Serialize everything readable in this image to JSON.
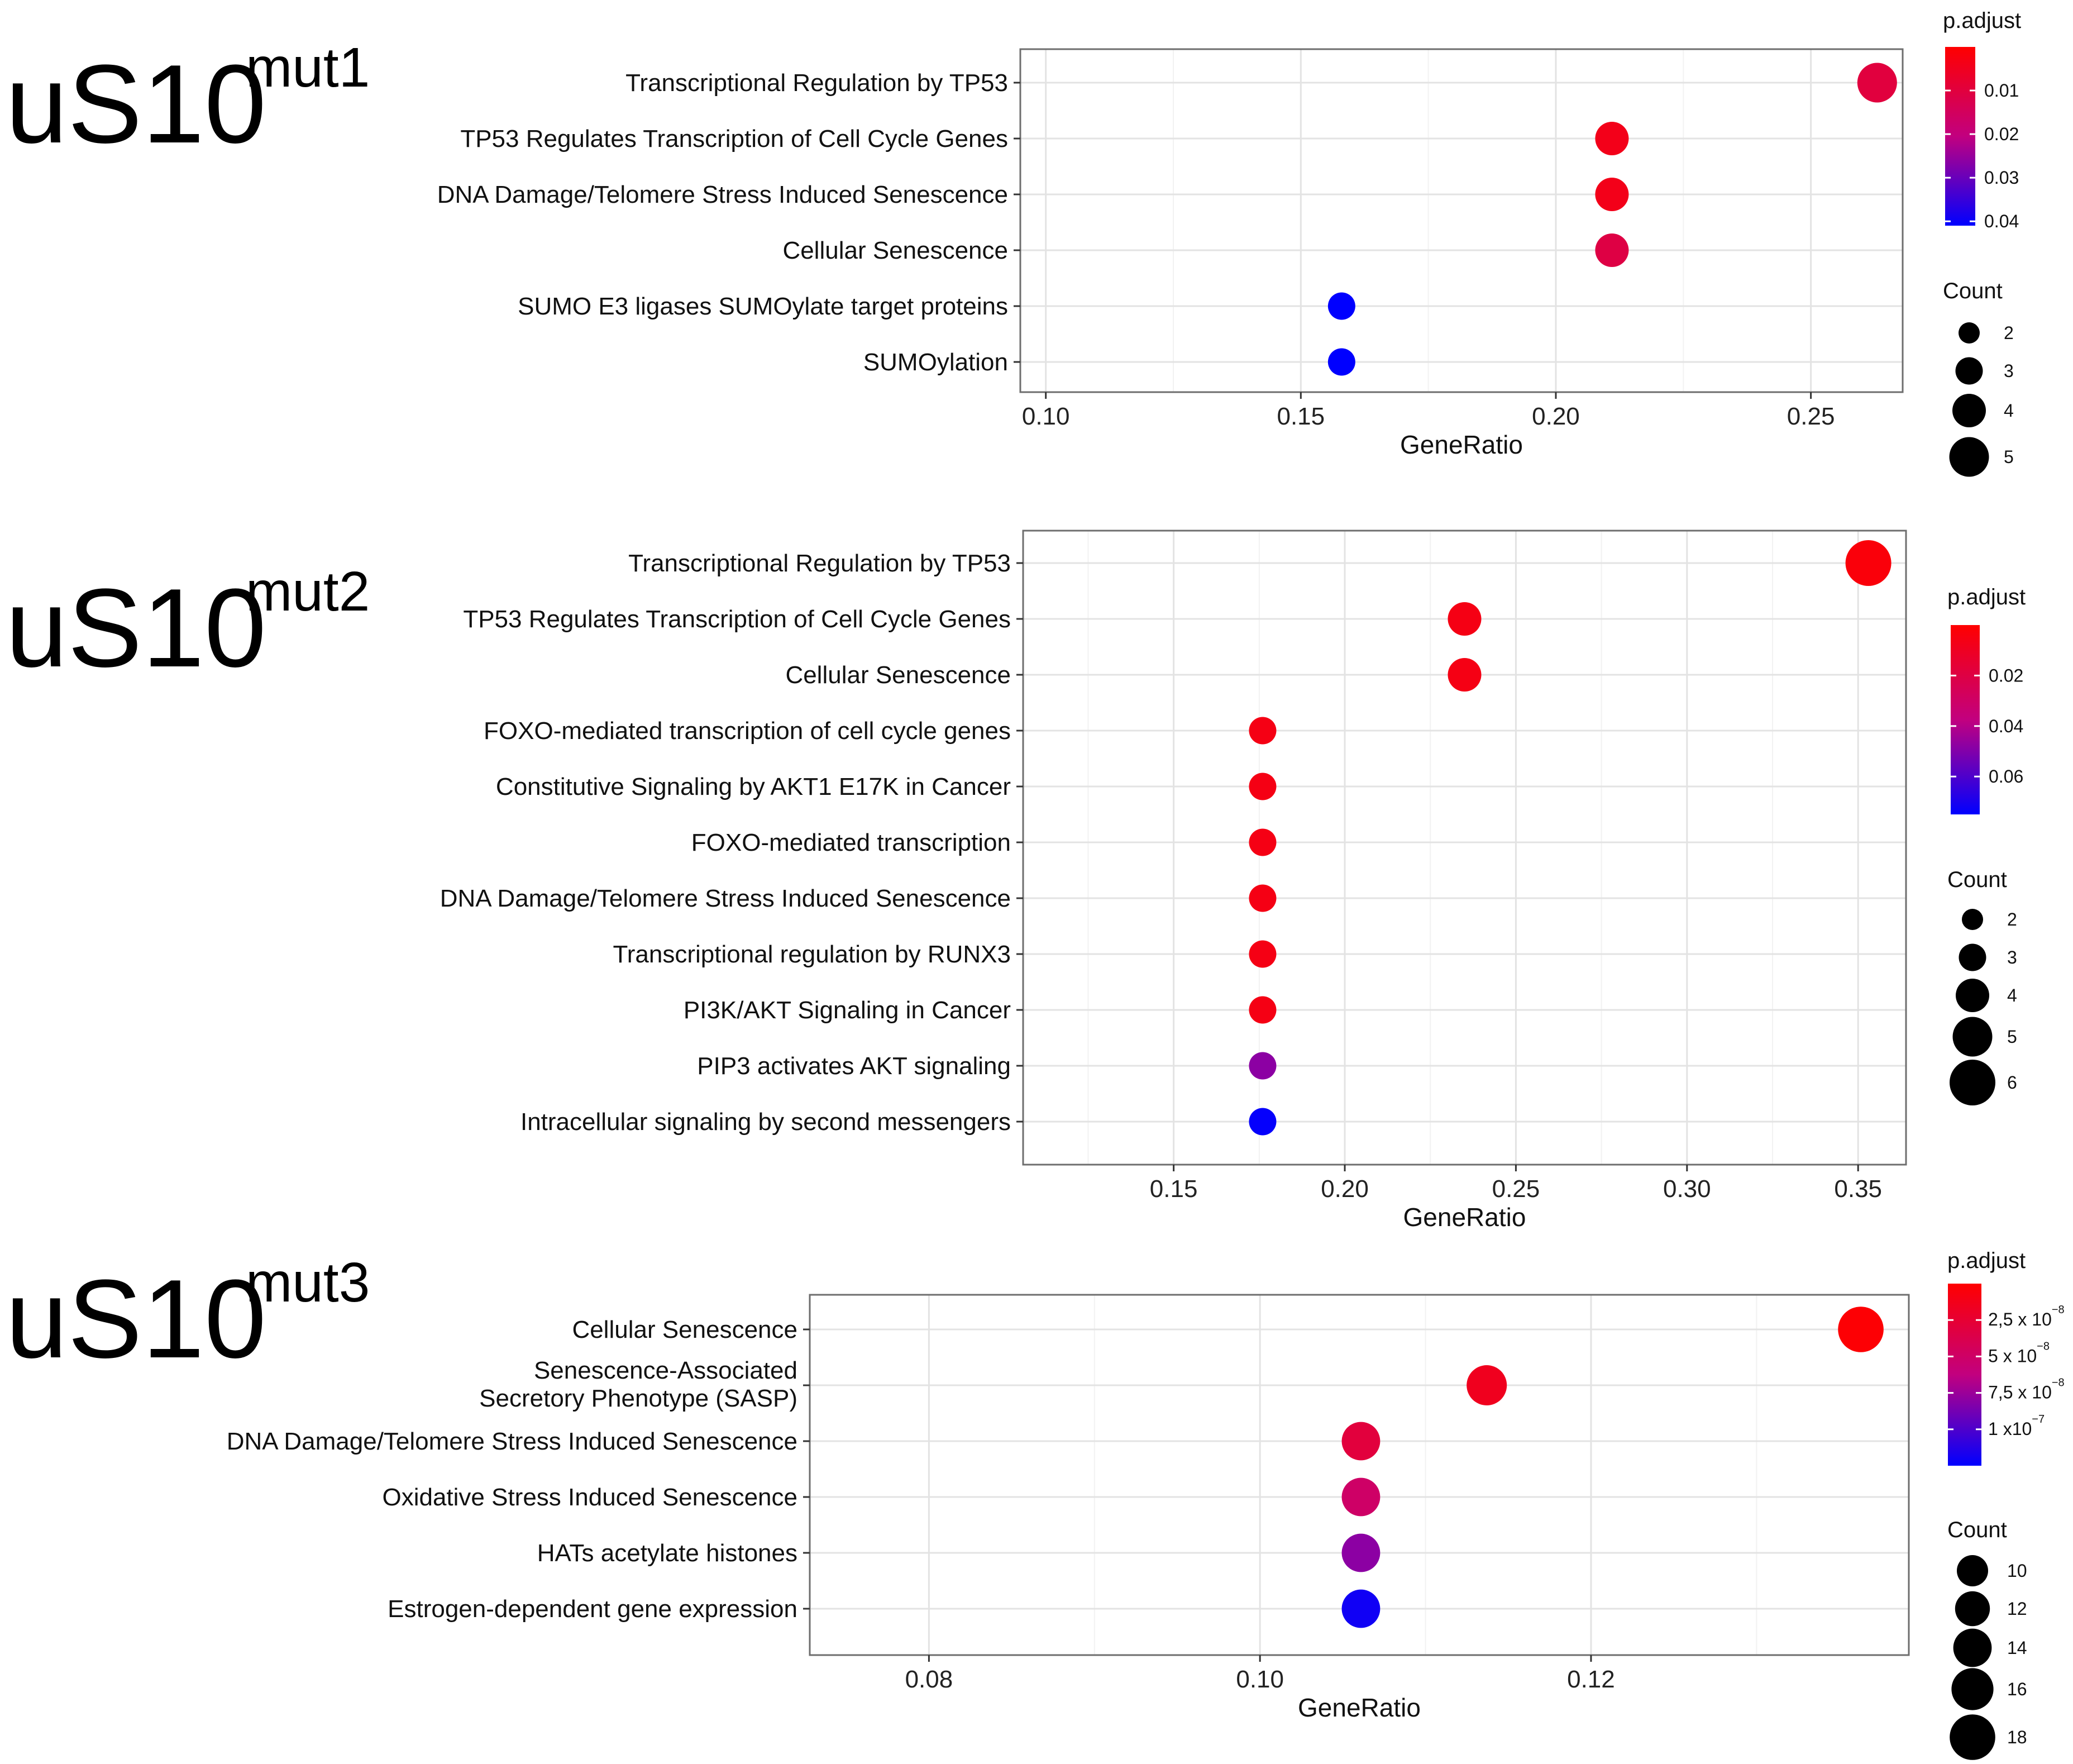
{
  "chart_data": [
    {
      "type": "scatter",
      "panel_title": "uS10",
      "panel_superscript": "mut1",
      "xlabel": "GeneRatio",
      "xlim": [
        0.095,
        0.268
      ],
      "xticks": [
        0.1,
        0.15,
        0.2,
        0.25
      ],
      "xtick_labels": [
        "0.10",
        "0.15",
        "0.20",
        "0.25"
      ],
      "categories": [
        "Transcriptional Regulation by TP53",
        "TP53 Regulates Transcription of Cell Cycle Genes",
        "DNA Damage/Telomere Stress Induced Senescence",
        "Cellular Senescence",
        "SUMO E3 ligases SUMOylate target proteins",
        "SUMOylation"
      ],
      "gene_ratio": [
        0.263,
        0.211,
        0.211,
        0.211,
        0.158,
        0.158
      ],
      "count": [
        5,
        4,
        4,
        4,
        3,
        3
      ],
      "p_adjust": [
        0.01,
        0.004,
        0.004,
        0.011,
        0.041,
        0.041
      ],
      "color_legend": {
        "title": "p.adjust",
        "min": 0.0,
        "max": 0.041,
        "ticks": [
          "0.01",
          "0.02",
          "0.03",
          "0.04"
        ],
        "tick_values": [
          0.01,
          0.02,
          0.03,
          0.04
        ]
      },
      "size_legend": {
        "title": "Count",
        "values": [
          2,
          3,
          4,
          5
        ],
        "labels": [
          "2",
          "3",
          "4",
          "5"
        ]
      },
      "grid": true
    },
    {
      "type": "scatter",
      "panel_title": "uS10",
      "panel_superscript": "mut2",
      "xlabel": "GeneRatio",
      "xlim": [
        0.106,
        0.364
      ],
      "xticks": [
        0.15,
        0.2,
        0.25,
        0.3,
        0.35
      ],
      "xtick_labels": [
        "0.15",
        "0.20",
        "0.25",
        "0.30",
        "0.35"
      ],
      "categories": [
        "Transcriptional Regulation by TP53",
        "TP53 Regulates Transcription of Cell Cycle Genes",
        "Cellular Senescence",
        "FOXO-mediated transcription of cell cycle genes",
        "Constitutive Signaling by AKT1 E17K in Cancer",
        "FOXO-mediated transcription",
        "DNA Damage/Telomere Stress Induced Senescence",
        "Transcriptional regulation by RUNX3",
        "PI3K/AKT Signaling in Cancer",
        "PIP3 activates AKT signaling",
        "Intracellular signaling by second messengers"
      ],
      "gene_ratio": [
        0.353,
        0.235,
        0.235,
        0.176,
        0.176,
        0.176,
        0.176,
        0.176,
        0.176,
        0.176,
        0.176
      ],
      "count": [
        6,
        4,
        4,
        3,
        3,
        3,
        3,
        3,
        3,
        3,
        3
      ],
      "p_adjust": [
        0.003,
        0.006,
        0.006,
        0.006,
        0.006,
        0.006,
        0.006,
        0.006,
        0.006,
        0.048,
        0.074
      ],
      "color_legend": {
        "title": "p.adjust",
        "min": 0.0,
        "max": 0.075,
        "ticks": [
          "0.02",
          "0.04",
          "0.06"
        ],
        "tick_values": [
          0.02,
          0.04,
          0.06
        ]
      },
      "size_legend": {
        "title": "Count",
        "values": [
          2,
          3,
          4,
          5,
          6
        ],
        "labels": [
          "2",
          "3",
          "4",
          "5",
          "6"
        ]
      },
      "grid": true
    },
    {
      "type": "scatter",
      "panel_title": "uS10",
      "panel_superscript": "mut3",
      "xlabel": "GeneRatio",
      "xlim": [
        0.0728,
        0.1392
      ],
      "xticks": [
        0.08,
        0.1,
        0.12
      ],
      "xtick_labels": [
        "0.08",
        "0.10",
        "0.12"
      ],
      "categories": [
        "Cellular Senescence",
        [
          "Senescence-Associated",
          "Secretory Phenotype (SASP)"
        ],
        "DNA Damage/Telomere Stress Induced Senescence",
        "Oxidative Stress Induced Senescence",
        "HATs acetylate histones",
        "Estrogen-dependent gene expression"
      ],
      "gene_ratio": [
        0.1363,
        0.1137,
        0.1061,
        0.1061,
        0.1061,
        0.1061
      ],
      "count": [
        18,
        15,
        14,
        14,
        14,
        14
      ],
      "p_adjust": [
        2e-09,
        1.5e-08,
        3e-08,
        5e-08,
        8e-08,
        1.2e-07
      ],
      "color_legend": {
        "title": "p.adjust",
        "min": 0.0,
        "max": 1.25e-07,
        "ticks": [
          [
            "2,5 x 10",
            "−8"
          ],
          [
            "5 x 10",
            "−8"
          ],
          [
            "7,5 x 10",
            "−8"
          ],
          [
            "1 x10",
            "−7"
          ]
        ],
        "tick_values": [
          2.5e-08,
          5e-08,
          7.5e-08,
          1e-07
        ]
      },
      "size_legend": {
        "title": "Count",
        "values": [
          10,
          12,
          14,
          16,
          18
        ],
        "labels": [
          "10",
          "12",
          "14",
          "16",
          "18"
        ]
      },
      "grid": true
    }
  ]
}
